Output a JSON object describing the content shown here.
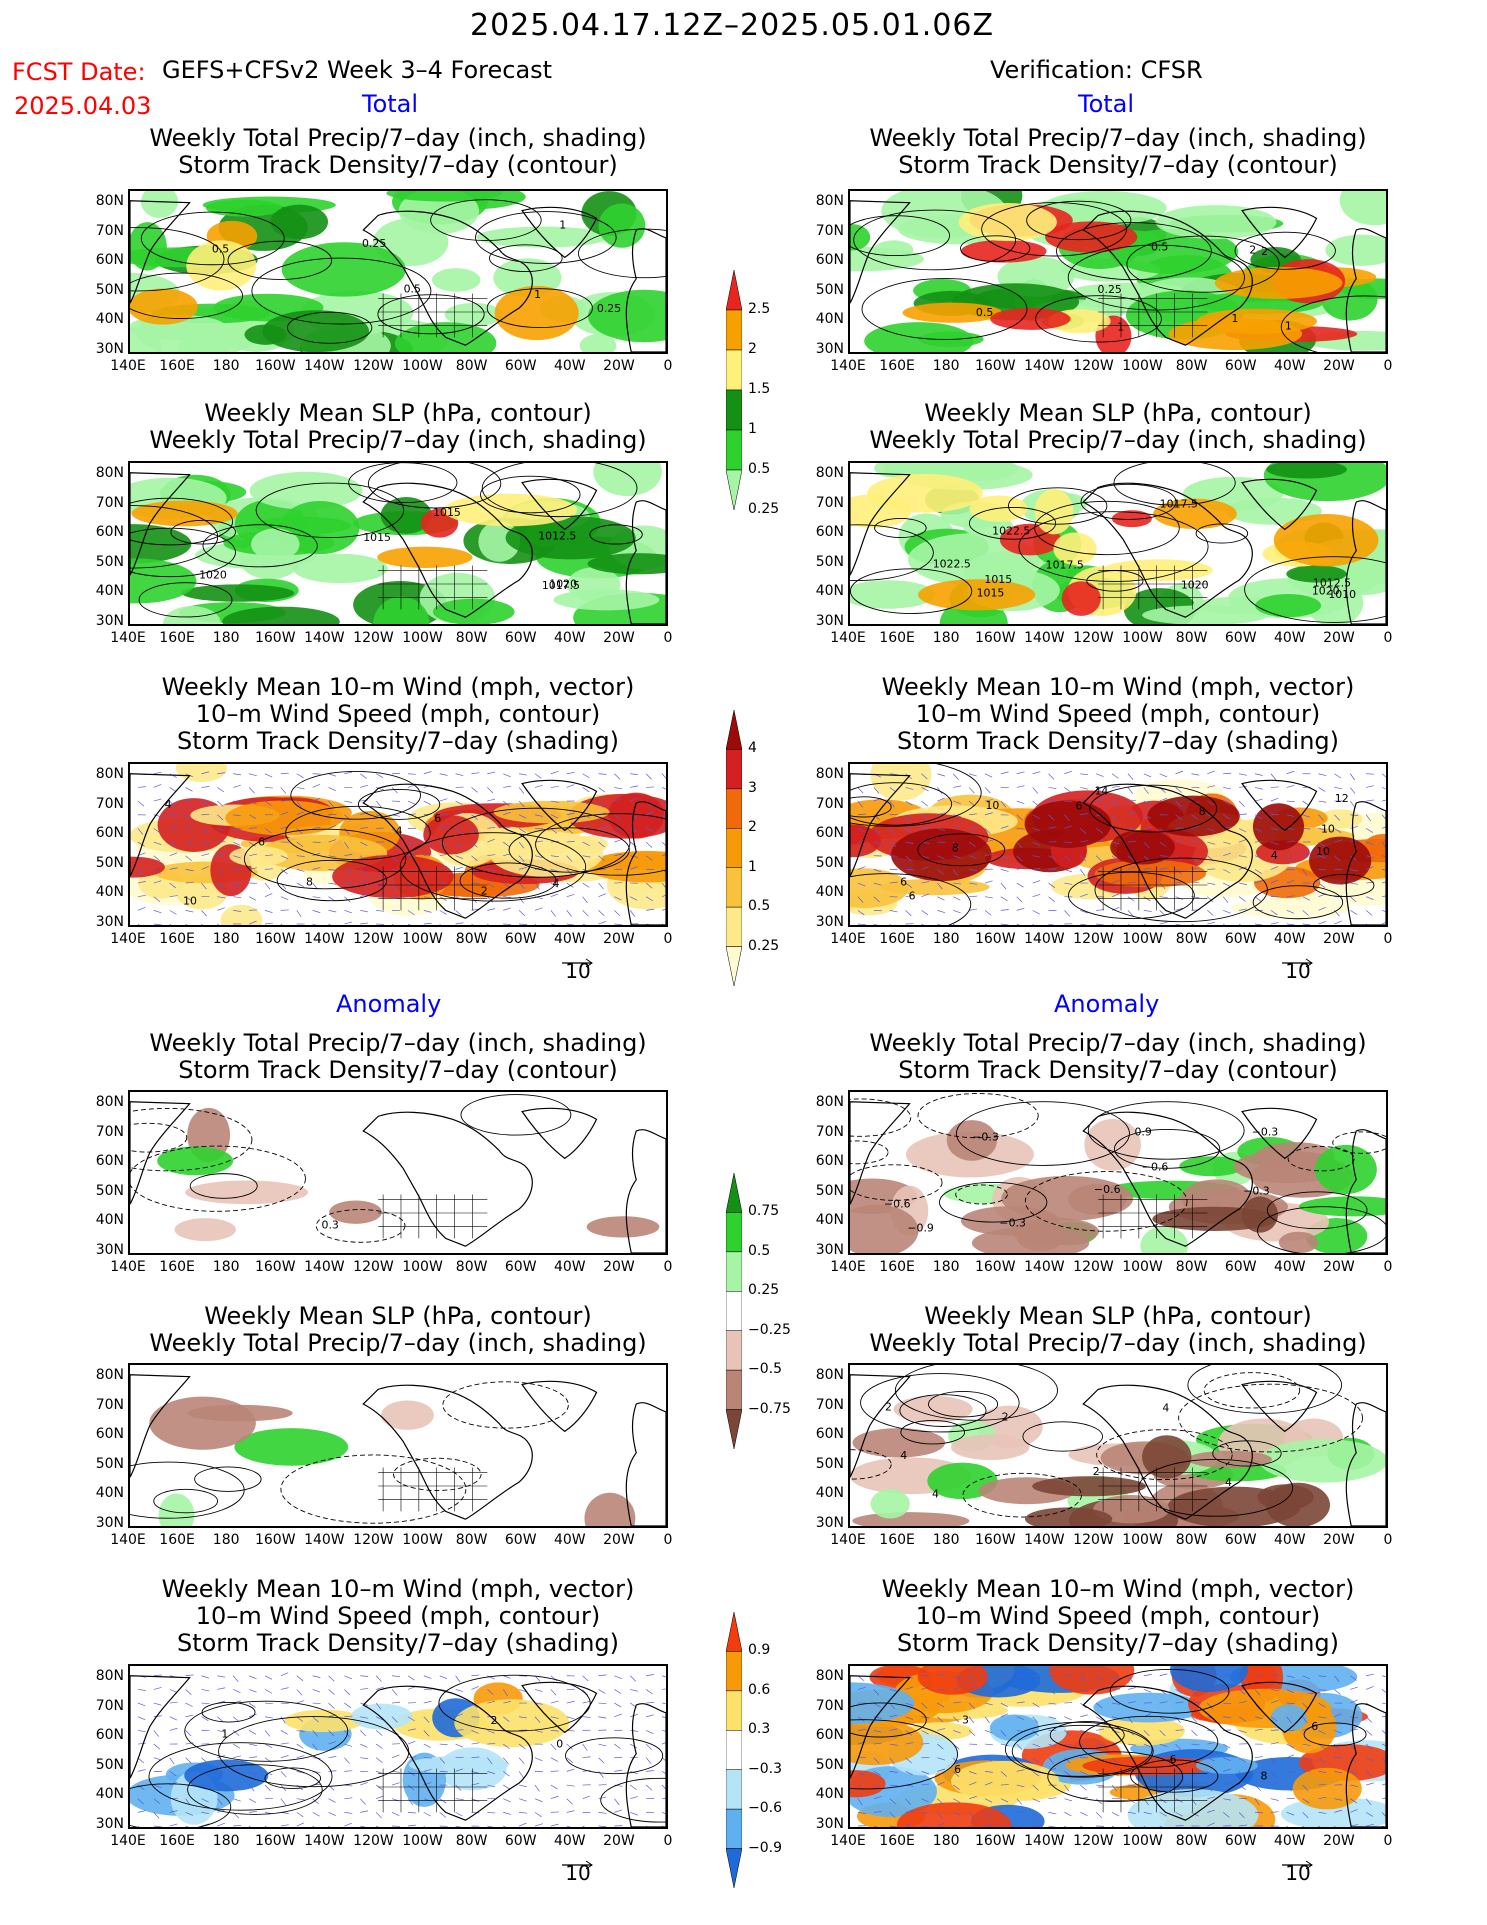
{
  "header": {
    "title": "2025.04.17.12Z–2025.05.01.06Z",
    "fcst_label": "FCST Date:",
    "model": "GEFS+CFSv2 Week 3–4 Forecast",
    "fcst_date": "2025.04.03",
    "verification": "Verification: CFSR"
  },
  "sections": {
    "total": "Total",
    "anomaly": "Anomaly"
  },
  "titles": {
    "precip_storm": [
      "Weekly Total Precip/7–day (inch, shading)",
      "Storm Track Density/7–day (contour)"
    ],
    "slp_precip": [
      "Weekly Mean SLP (hPa, contour)",
      "Weekly Total Precip/7–day (inch, shading)"
    ],
    "wind": [
      "Weekly Mean 10–m Wind (mph, vector)",
      "10–m Wind Speed (mph, contour)",
      "Storm Track Density/7–day (shading)"
    ]
  },
  "axes": {
    "lat_ticks": [
      "80N",
      "70N",
      "60N",
      "50N",
      "40N",
      "30N"
    ],
    "lon_ticks": [
      "140E",
      "160E",
      "180",
      "160W",
      "140W",
      "120W",
      "100W",
      "80W",
      "60W",
      "40W",
      "20W",
      "0"
    ]
  },
  "colorbars": {
    "precip_total": {
      "labels": [
        "2.5",
        "2",
        "1.5",
        "1",
        "0.5",
        "0.25"
      ],
      "colors": [
        "#e8251f",
        "#f7a100",
        "#fff07a",
        "#149114",
        "#2fd12f",
        "#a5f5a5"
      ]
    },
    "storm_total": {
      "labels": [
        "4",
        "3",
        "2",
        "1",
        "0.5",
        "0.25"
      ],
      "colors": [
        "#9c0a0a",
        "#d42020",
        "#f06a0a",
        "#f79a0a",
        "#f9c23c",
        "#fde98a",
        "#fffbd0"
      ]
    },
    "precip_anom": {
      "labels": [
        "0.75",
        "0.5",
        "0.25",
        "−0.25",
        "−0.5",
        "−0.75"
      ],
      "colors": [
        "#149114",
        "#2fd12f",
        "#a5f5a5",
        "#ffffff",
        "#e8c3b8",
        "#b98577",
        "#7b4636"
      ]
    },
    "storm_anom": {
      "labels": [
        "0.9",
        "0.6",
        "0.3",
        "−0.3",
        "−0.6",
        "−0.9"
      ],
      "colors": [
        "#f03c0f",
        "#f79a0a",
        "#fde16a",
        "#ffffff",
        "#b5e4f7",
        "#5fb0f0",
        "#1e6ad8"
      ]
    },
    "vector_ref": "10"
  },
  "map_labels": {
    "p1": [
      "0.5",
      "1",
      "1",
      "0.25",
      "0.5",
      "0.25"
    ],
    "p2": [
      "0.5",
      "1",
      "2",
      "1",
      "0.25",
      "0.5",
      "1",
      "2"
    ],
    "p3": [
      "1015",
      "1012.5",
      "1020",
      "1020",
      "1017.5",
      "1015"
    ],
    "p4": [
      "1022.5",
      "1015",
      "1020",
      "1017.5",
      "1010",
      "1020",
      "1015",
      "1012.5",
      "1017.5",
      "1022.5"
    ],
    "p5": [
      "4",
      "4",
      "2",
      "8",
      "4",
      "6",
      "6",
      "10"
    ],
    "p6": [
      "8",
      "4",
      "14",
      "12",
      "10",
      "6",
      "6",
      "10",
      "6",
      "10",
      "8"
    ],
    "p7": [
      "0.3"
    ],
    "p8": [
      "−0.3",
      "−0.3",
      "−0.9",
      "−0.6",
      "−0.3",
      "−0.3",
      "−0.6",
      "−0.6",
      "0.9"
    ],
    "p10": [
      "2",
      "4",
      "2",
      "4",
      "4",
      "2",
      "4"
    ],
    "p11": [
      "2",
      "0",
      "1"
    ],
    "p12": [
      "6",
      "6",
      "8",
      "3",
      "6"
    ]
  }
}
